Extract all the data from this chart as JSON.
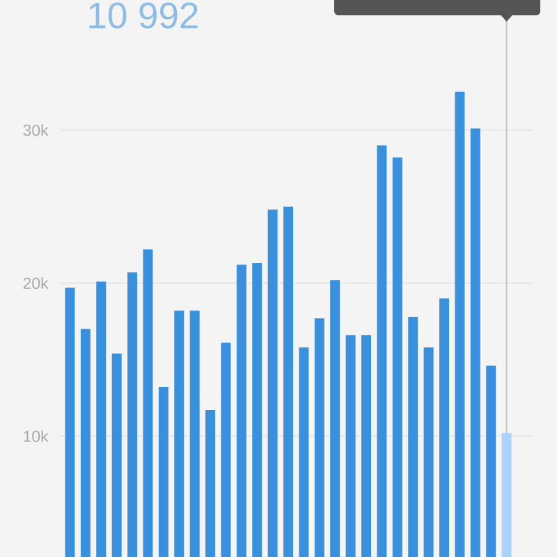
{
  "chart_data": {
    "type": "bar",
    "title": "10 992",
    "categories": [
      null,
      null,
      null,
      null,
      null,
      null,
      null,
      null,
      null,
      null,
      null,
      null,
      null,
      null,
      null,
      null,
      null,
      null,
      null,
      null,
      null,
      null,
      null,
      null,
      null,
      null,
      null,
      null,
      null
    ],
    "values": [
      19700,
      17000,
      20100,
      15400,
      20700,
      22200,
      13200,
      18200,
      18200,
      11700,
      16100,
      21200,
      21300,
      24800,
      25000,
      15800,
      17700,
      20200,
      16600,
      16600,
      29000,
      28200,
      17800,
      15800,
      19000,
      32500,
      30100,
      14600,
      10200
    ],
    "colors": [
      "#3990dd",
      "#3990dd",
      "#3990dd",
      "#3990dd",
      "#3990dd",
      "#3990dd",
      "#3990dd",
      "#3990dd",
      "#3990dd",
      "#3990dd",
      "#3990dd",
      "#3990dd",
      "#3990dd",
      "#3990dd",
      "#3990dd",
      "#3990dd",
      "#3990dd",
      "#3990dd",
      "#3990dd",
      "#3990dd",
      "#3990dd",
      "#3990dd",
      "#3990dd",
      "#3990dd",
      "#3990dd",
      "#3990dd",
      "#3990dd",
      "#3990dd",
      "#a8d3fa"
    ],
    "ylim": [
      2100,
      38500
    ],
    "yticks": [
      {
        "value": 10000,
        "label": "10k"
      },
      {
        "value": 20000,
        "label": "20k"
      },
      {
        "value": 30000,
        "label": "30k"
      }
    ],
    "grid": "y",
    "tick_labels": "y"
  }
}
